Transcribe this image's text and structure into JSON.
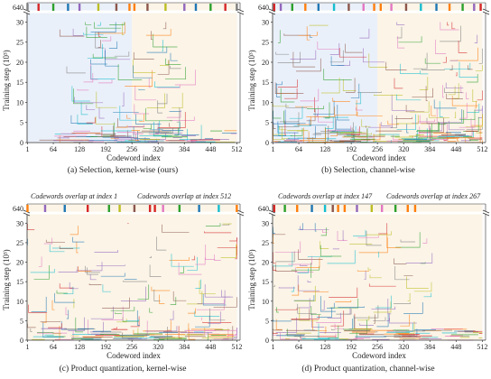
{
  "chart_data": [
    {
      "id": "a",
      "type": "line",
      "caption": "(a) Selection, kernel-wise (ours)",
      "xlabel": "Codeword index",
      "ylabel": "Training step (10³)",
      "xlim": [
        0,
        520
      ],
      "ylim": [
        0,
        31
      ],
      "xticks": [
        1,
        64,
        128,
        192,
        256,
        320,
        384,
        448,
        512
      ],
      "yticks": [
        0,
        5,
        10,
        15,
        20,
        25,
        30
      ],
      "ybreak_label": "640",
      "pattern": "symmetric",
      "regions": [
        {
          "x": [
            1,
            256
          ],
          "color": "#e8eef8"
        },
        {
          "x": [
            256,
            512
          ],
          "color": "#fbf3e4"
        }
      ],
      "top_markers": [
        {
          "x": 1,
          "color": "#7f7f7f"
        },
        {
          "x": 28,
          "color": "#d62728"
        },
        {
          "x": 64,
          "color": "#2ca02c"
        },
        {
          "x": 100,
          "color": "#1f77b4"
        },
        {
          "x": 128,
          "color": "#9467bd"
        },
        {
          "x": 174,
          "color": "#bcbd22"
        },
        {
          "x": 218,
          "color": "#8c564b"
        },
        {
          "x": 250,
          "color": "#ff7f0e"
        },
        {
          "x": 262,
          "color": "#ff7f0e"
        },
        {
          "x": 294,
          "color": "#8c564b"
        },
        {
          "x": 338,
          "color": "#bcbd22"
        },
        {
          "x": 384,
          "color": "#9467bd"
        },
        {
          "x": 412,
          "color": "#1f77b4"
        },
        {
          "x": 448,
          "color": "#2ca02c"
        },
        {
          "x": 484,
          "color": "#d62728"
        },
        {
          "x": 512,
          "color": "#7f7f7f"
        }
      ],
      "overlap_annotations": []
    },
    {
      "id": "b",
      "type": "line",
      "caption": "(b) Selection, channel-wise",
      "xlabel": "Codeword index",
      "ylabel": "Training step (10³)",
      "xlim": [
        0,
        520
      ],
      "ylim": [
        0,
        31
      ],
      "xticks": [
        1,
        64,
        128,
        192,
        256,
        320,
        384,
        448,
        512
      ],
      "yticks": [
        0,
        5,
        10,
        15,
        20,
        25,
        30
      ],
      "ybreak_label": "640",
      "pattern": "symmetric-dense",
      "regions": [
        {
          "x": [
            1,
            256
          ],
          "color": "#e8eef8"
        },
        {
          "x": [
            256,
            512
          ],
          "color": "#fbf3e4"
        }
      ],
      "top_markers": [
        {
          "x": 4,
          "color": "#d62728"
        },
        {
          "x": 20,
          "color": "#9467bd"
        },
        {
          "x": 48,
          "color": "#2ca02c"
        },
        {
          "x": 80,
          "color": "#ff7f0e"
        },
        {
          "x": 112,
          "color": "#1f77b4"
        },
        {
          "x": 150,
          "color": "#17becf"
        },
        {
          "x": 186,
          "color": "#8c564b"
        },
        {
          "x": 222,
          "color": "#e377c2"
        },
        {
          "x": 248,
          "color": "#ff7f0e"
        },
        {
          "x": 264,
          "color": "#ff7f0e"
        },
        {
          "x": 290,
          "color": "#e377c2"
        },
        {
          "x": 326,
          "color": "#8c564b"
        },
        {
          "x": 362,
          "color": "#17becf"
        },
        {
          "x": 400,
          "color": "#1f77b4"
        },
        {
          "x": 432,
          "color": "#ff7f0e"
        },
        {
          "x": 464,
          "color": "#2ca02c"
        },
        {
          "x": 492,
          "color": "#9467bd"
        },
        {
          "x": 508,
          "color": "#d62728"
        }
      ],
      "overlap_annotations": []
    },
    {
      "id": "c",
      "type": "line",
      "caption": "(c) Product quantization, kernel-wise",
      "xlabel": "Codeword index",
      "ylabel": "Training step (10³)",
      "xlim": [
        0,
        520
      ],
      "ylim": [
        0,
        31
      ],
      "xticks": [
        1,
        64,
        128,
        192,
        256,
        320,
        384,
        448,
        512
      ],
      "yticks": [
        0,
        5,
        10,
        15,
        20,
        25,
        30
      ],
      "ybreak_label": "640",
      "pattern": "random",
      "regions": [
        {
          "x": [
            1,
            512
          ],
          "color": "#fbf3e4"
        }
      ],
      "top_markers": [
        {
          "x": 1,
          "color": "#ff7f0e"
        },
        {
          "x": 44,
          "color": "#9467bd"
        },
        {
          "x": 92,
          "color": "#1f77b4"
        },
        {
          "x": 148,
          "color": "#d62728"
        },
        {
          "x": 200,
          "color": "#2ca02c"
        },
        {
          "x": 226,
          "color": "#bcbd22"
        },
        {
          "x": 262,
          "color": "#8c564b"
        },
        {
          "x": 300,
          "color": "#d62728"
        },
        {
          "x": 312,
          "color": "#d62728"
        },
        {
          "x": 332,
          "color": "#e377c2"
        },
        {
          "x": 372,
          "color": "#2ca02c"
        },
        {
          "x": 420,
          "color": "#1f77b4"
        },
        {
          "x": 468,
          "color": "#17becf"
        },
        {
          "x": 512,
          "color": "#ff7f0e"
        }
      ],
      "overlap_annotations": [
        {
          "text": "Codewords overlap at index 1",
          "x": 1
        },
        {
          "text": "Codewords overlap at index 512",
          "x": 512
        }
      ]
    },
    {
      "id": "d",
      "type": "line",
      "caption": "(d) Product quantization, channel-wise",
      "xlabel": "Codeword index",
      "ylabel": "Training step (10³)",
      "xlim": [
        0,
        520
      ],
      "ylim": [
        0,
        31
      ],
      "xticks": [
        1,
        64,
        128,
        192,
        256,
        320,
        384,
        448,
        512
      ],
      "yticks": [
        0,
        5,
        10,
        15,
        20,
        25,
        30
      ],
      "ybreak_label": "640",
      "pattern": "left-heavy",
      "regions": [
        {
          "x": [
            1,
            512
          ],
          "color": "#fbf3e4"
        }
      ],
      "top_markers": [
        {
          "x": 4,
          "color": "#d62728"
        },
        {
          "x": 30,
          "color": "#2ca02c"
        },
        {
          "x": 60,
          "color": "#ff7f0e"
        },
        {
          "x": 96,
          "color": "#1f77b4"
        },
        {
          "x": 128,
          "color": "#17becf"
        },
        {
          "x": 147,
          "color": "#8c564b"
        },
        {
          "x": 160,
          "color": "#ff7f0e"
        },
        {
          "x": 176,
          "color": "#ff7f0e"
        },
        {
          "x": 206,
          "color": "#9467bd"
        },
        {
          "x": 242,
          "color": "#bcbd22"
        },
        {
          "x": 267,
          "color": "#e377c2"
        },
        {
          "x": 300,
          "color": "#2ca02c"
        },
        {
          "x": 330,
          "color": "#ff7f0e"
        },
        {
          "x": 348,
          "color": "#ff7f0e"
        }
      ],
      "overlap_annotations": [
        {
          "text": "Codewords overlap at index 147",
          "x": 147
        },
        {
          "text": "Codewords overlap at index 267",
          "x": 267
        }
      ]
    }
  ],
  "palette": [
    "#1f77b4",
    "#ff7f0e",
    "#2ca02c",
    "#d62728",
    "#9467bd",
    "#8c564b",
    "#e377c2",
    "#7f7f7f",
    "#bcbd22",
    "#17becf"
  ]
}
